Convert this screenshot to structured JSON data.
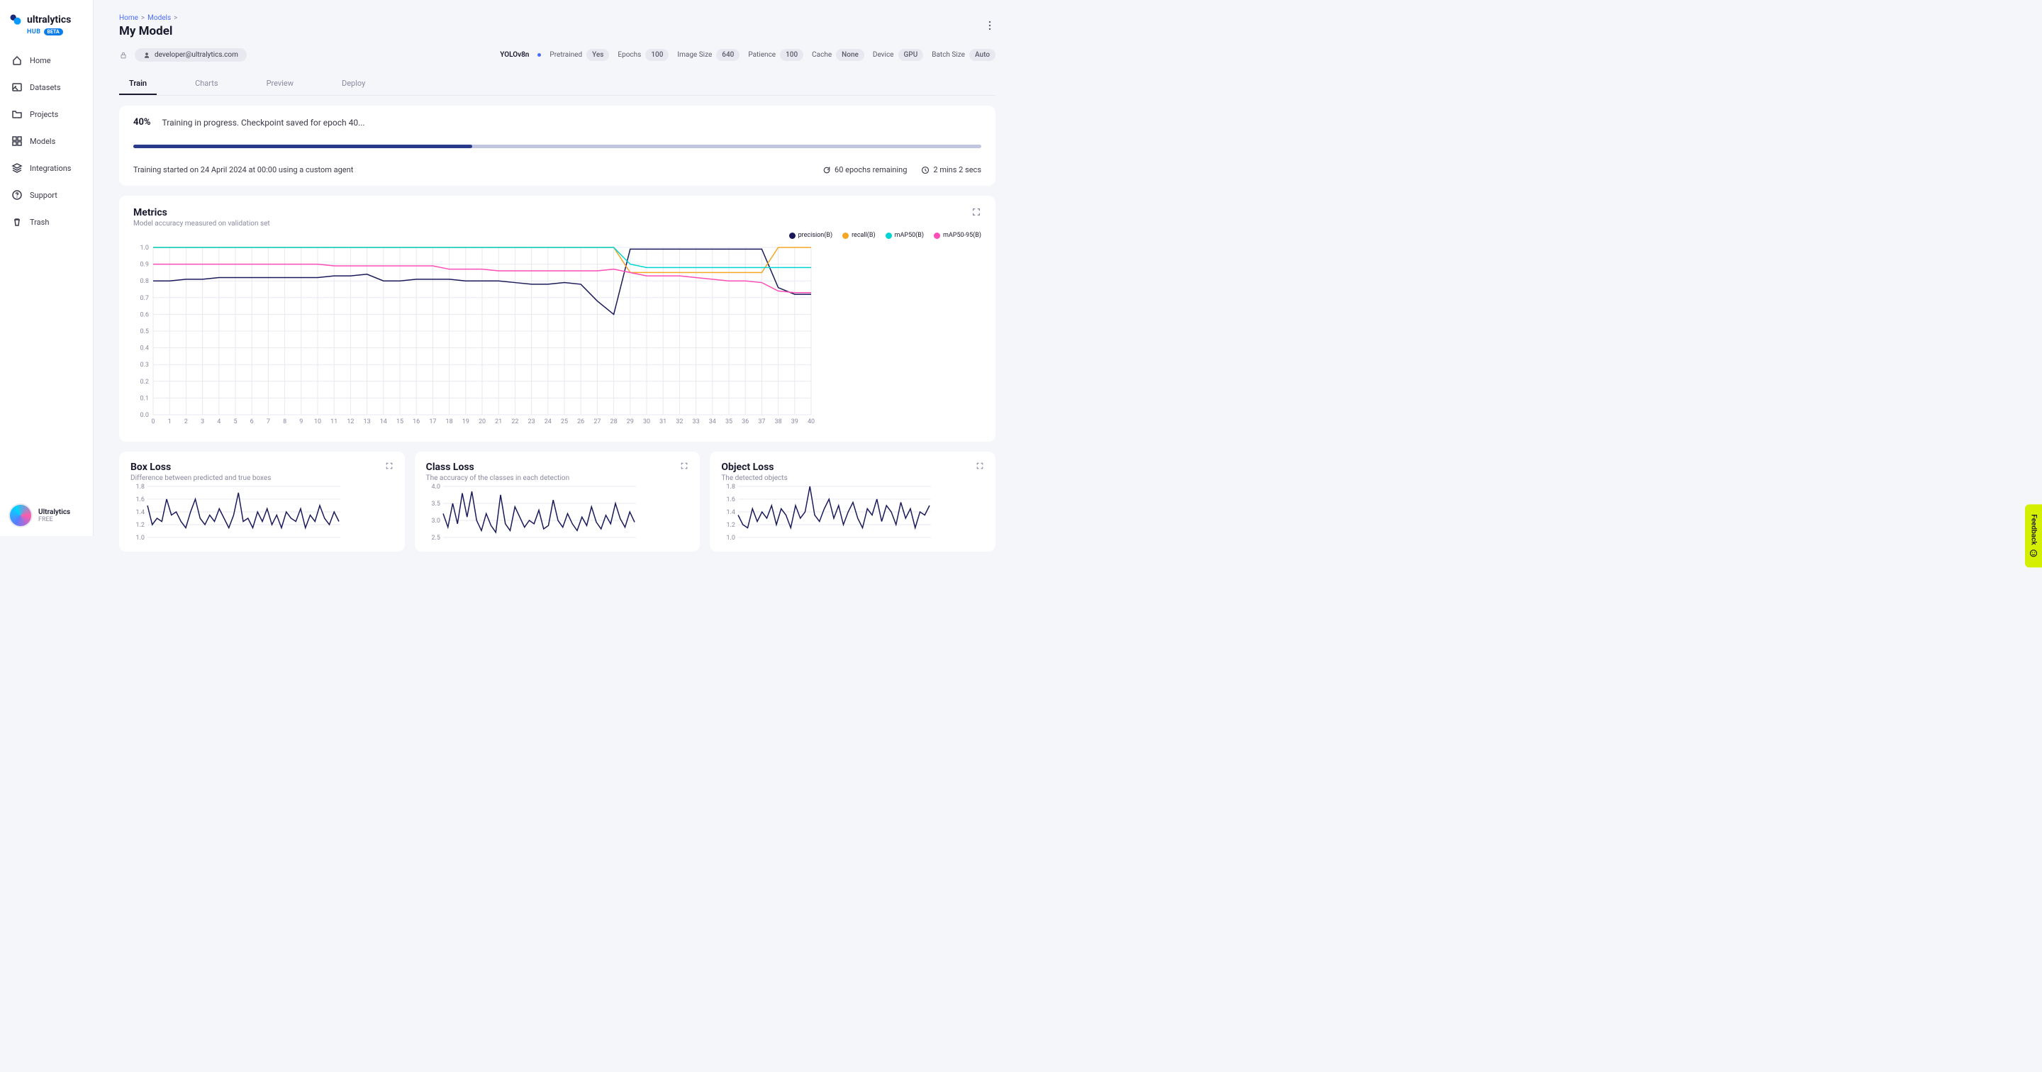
{
  "logo": {
    "brand": "ultralytics",
    "sub": "HUB",
    "badge": "BETA"
  },
  "nav": [
    {
      "label": "Home",
      "icon": "home"
    },
    {
      "label": "Datasets",
      "icon": "image"
    },
    {
      "label": "Projects",
      "icon": "folder"
    },
    {
      "label": "Models",
      "icon": "models"
    },
    {
      "label": "Integrations",
      "icon": "layers"
    },
    {
      "label": "Support",
      "icon": "help"
    },
    {
      "label": "Trash",
      "icon": "trash"
    }
  ],
  "footer": {
    "name": "Ultralytics",
    "tier": "FREE"
  },
  "breadcrumbs": [
    {
      "label": "Home"
    },
    {
      "label": "Models"
    }
  ],
  "page_title": "My Model",
  "owner_email": "developer@ultralytics.com",
  "model_tag": "YOLOv8n",
  "config": [
    {
      "label": "Pretrained",
      "value": "Yes"
    },
    {
      "label": "Epochs",
      "value": "100"
    },
    {
      "label": "Image Size",
      "value": "640"
    },
    {
      "label": "Patience",
      "value": "100"
    },
    {
      "label": "Cache",
      "value": "None"
    },
    {
      "label": "Device",
      "value": "GPU"
    },
    {
      "label": "Batch Size",
      "value": "Auto"
    }
  ],
  "tabs": [
    "Train",
    "Charts",
    "Preview",
    "Deploy"
  ],
  "progress": {
    "pct_label": "40%",
    "pct_value": 40,
    "message": "Training in progress. Checkpoint saved for epoch 40...",
    "started_text": "Training started on 24 April 2024 at 00:00 using a custom agent",
    "remaining": "60 epochs remaining",
    "eta": "2 mins 2 secs"
  },
  "metrics_chart": {
    "title": "Metrics",
    "subtitle": "Model accuracy measured on validation set",
    "ylim": [
      0,
      1.0
    ],
    "ytick_step": 0.1,
    "xlim": [
      0,
      40
    ],
    "xtick_step": 1,
    "grid_color": "#e8e9f0",
    "background": "#ffffff",
    "series": [
      {
        "name": "precision(B)",
        "color": "#1a1a5a",
        "values": [
          0.8,
          0.8,
          0.81,
          0.81,
          0.82,
          0.82,
          0.82,
          0.82,
          0.82,
          0.82,
          0.82,
          0.83,
          0.83,
          0.84,
          0.8,
          0.8,
          0.81,
          0.81,
          0.81,
          0.8,
          0.8,
          0.8,
          0.79,
          0.78,
          0.78,
          0.79,
          0.78,
          0.68,
          0.6,
          0.99,
          0.99,
          0.99,
          0.99,
          0.99,
          0.99,
          0.99,
          0.99,
          0.99,
          0.76,
          0.72,
          0.72
        ]
      },
      {
        "name": "recall(B)",
        "color": "#f5a623",
        "values": [
          1.0,
          1.0,
          1.0,
          1.0,
          1.0,
          1.0,
          1.0,
          1.0,
          1.0,
          1.0,
          1.0,
          1.0,
          1.0,
          1.0,
          1.0,
          1.0,
          1.0,
          1.0,
          1.0,
          1.0,
          1.0,
          1.0,
          1.0,
          1.0,
          1.0,
          1.0,
          1.0,
          1.0,
          1.0,
          0.85,
          0.85,
          0.85,
          0.85,
          0.85,
          0.85,
          0.85,
          0.85,
          0.85,
          1.0,
          1.0,
          1.0
        ]
      },
      {
        "name": "mAP50(B)",
        "color": "#00d4d4",
        "values": [
          1.0,
          1.0,
          1.0,
          1.0,
          1.0,
          1.0,
          1.0,
          1.0,
          1.0,
          1.0,
          1.0,
          1.0,
          1.0,
          1.0,
          1.0,
          1.0,
          1.0,
          1.0,
          1.0,
          1.0,
          1.0,
          1.0,
          1.0,
          1.0,
          1.0,
          1.0,
          1.0,
          1.0,
          1.0,
          0.9,
          0.88,
          0.88,
          0.88,
          0.88,
          0.88,
          0.88,
          0.88,
          0.88,
          0.88,
          0.88,
          0.88
        ]
      },
      {
        "name": "mAP50-95(B)",
        "color": "#ff4db8",
        "values": [
          0.9,
          0.9,
          0.9,
          0.9,
          0.9,
          0.9,
          0.9,
          0.9,
          0.9,
          0.9,
          0.9,
          0.89,
          0.89,
          0.89,
          0.89,
          0.89,
          0.89,
          0.89,
          0.87,
          0.87,
          0.87,
          0.86,
          0.86,
          0.86,
          0.86,
          0.86,
          0.86,
          0.86,
          0.87,
          0.85,
          0.83,
          0.83,
          0.83,
          0.82,
          0.81,
          0.8,
          0.8,
          0.79,
          0.74,
          0.73,
          0.73
        ]
      }
    ]
  },
  "small_charts": [
    {
      "title": "Box Loss",
      "subtitle": "Difference between predicted and true boxes",
      "ylim": [
        1.0,
        1.8
      ],
      "ytick_step": 0.2,
      "color": "#1a1a5a",
      "values": [
        1.5,
        1.2,
        1.3,
        1.25,
        1.6,
        1.35,
        1.4,
        1.25,
        1.15,
        1.4,
        1.6,
        1.3,
        1.2,
        1.35,
        1.25,
        1.45,
        1.3,
        1.15,
        1.35,
        1.7,
        1.25,
        1.3,
        1.15,
        1.4,
        1.25,
        1.45,
        1.2,
        1.35,
        1.15,
        1.4,
        1.3,
        1.25,
        1.45,
        1.15,
        1.35,
        1.25,
        1.5,
        1.3,
        1.2,
        1.4,
        1.25
      ]
    },
    {
      "title": "Class Loss",
      "subtitle": "The accuracy of the classes in each detection",
      "ylim": [
        2.5,
        4.0
      ],
      "ytick_step": 0.5,
      "color": "#1a1a5a",
      "values": [
        3.2,
        2.8,
        3.5,
        2.9,
        3.8,
        3.1,
        3.85,
        3.0,
        2.7,
        3.2,
        2.85,
        2.65,
        3.75,
        2.9,
        2.7,
        3.4,
        3.1,
        2.8,
        3.0,
        2.9,
        3.3,
        2.75,
        2.85,
        3.6,
        3.0,
        2.8,
        3.2,
        2.9,
        2.7,
        3.1,
        2.85,
        3.4,
        2.95,
        2.75,
        3.15,
        2.9,
        3.5,
        3.05,
        2.8,
        3.25,
        2.95
      ]
    },
    {
      "title": "Object Loss",
      "subtitle": "The detected objects",
      "ylim": [
        1.0,
        1.8
      ],
      "ytick_step": 0.2,
      "color": "#1a1a5a",
      "values": [
        1.35,
        1.2,
        1.15,
        1.45,
        1.25,
        1.4,
        1.3,
        1.5,
        1.2,
        1.45,
        1.35,
        1.15,
        1.5,
        1.3,
        1.4,
        1.8,
        1.35,
        1.25,
        1.45,
        1.6,
        1.3,
        1.5,
        1.2,
        1.4,
        1.55,
        1.3,
        1.15,
        1.45,
        1.35,
        1.6,
        1.25,
        1.5,
        1.4,
        1.2,
        1.55,
        1.3,
        1.45,
        1.15,
        1.4,
        1.35,
        1.5
      ]
    }
  ],
  "feedback_label": "Feedback"
}
